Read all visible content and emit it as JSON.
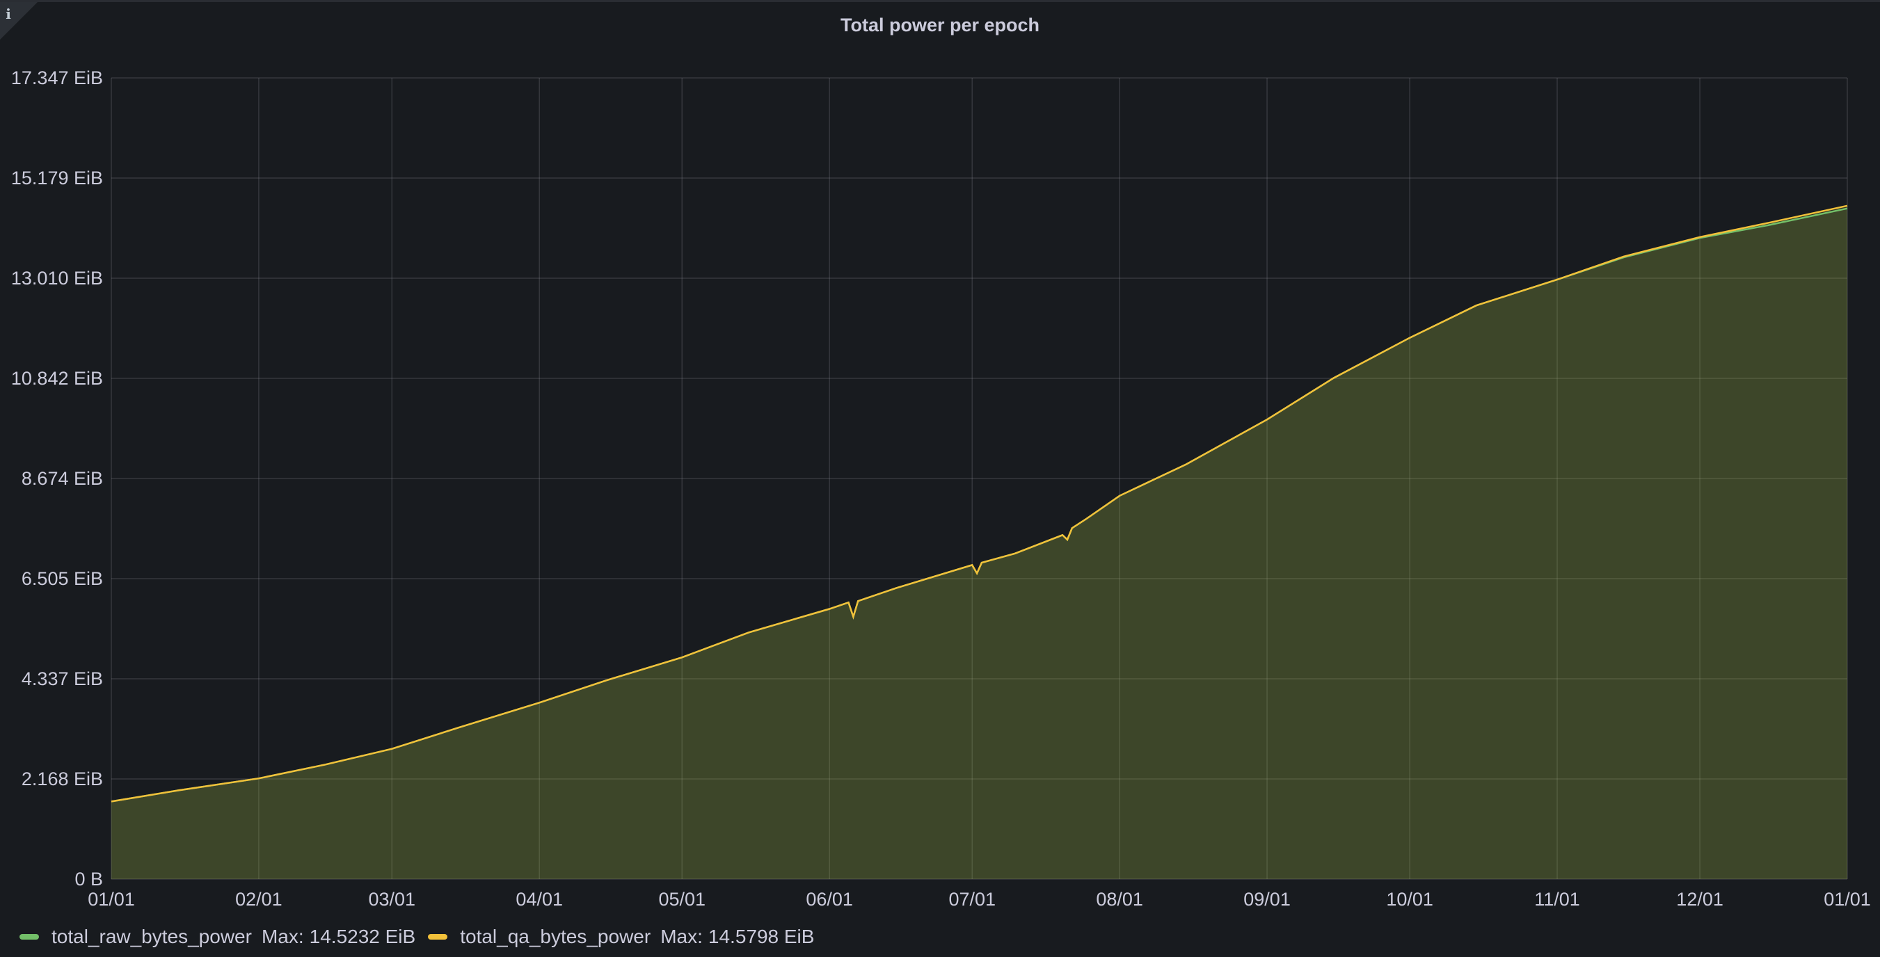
{
  "panel": {
    "title": "Total power per epoch",
    "info_icon": "info-icon"
  },
  "chart_data": {
    "type": "area",
    "title": "Total power per epoch",
    "xlabel": "",
    "ylabel": "",
    "x_ticks": [
      "01/01",
      "02/01",
      "03/01",
      "04/01",
      "05/01",
      "06/01",
      "07/01",
      "08/01",
      "09/01",
      "10/01",
      "11/01",
      "12/01",
      "01/01"
    ],
    "y_ticks": [
      "0 B",
      "2.168 EiB",
      "4.337 EiB",
      "6.505 EiB",
      "8.674 EiB",
      "10.842 EiB",
      "13.010 EiB",
      "15.179 EiB",
      "17.347 EiB"
    ],
    "ylim": [
      0,
      17.347
    ],
    "y_unit": "EiB",
    "grid": true,
    "legend_position": "bottom-left",
    "x": [
      "01/01",
      "01/15",
      "02/01",
      "02/15",
      "03/01",
      "03/15",
      "04/01",
      "04/15",
      "05/01",
      "05/15",
      "06/01",
      "06/05",
      "06/06",
      "06/07",
      "06/15",
      "07/01",
      "07/02",
      "07/03",
      "07/10",
      "07/20",
      "07/21",
      "07/22",
      "07/25",
      "08/01",
      "08/15",
      "09/01",
      "09/15",
      "10/01",
      "10/15",
      "11/01",
      "11/15",
      "12/01",
      "12/15",
      "01/01"
    ],
    "series": [
      {
        "name": "total_raw_bytes_power",
        "color": "#73bf69",
        "values": [
          1.68,
          1.92,
          2.18,
          2.48,
          2.82,
          3.28,
          3.82,
          4.3,
          4.8,
          5.34,
          5.85,
          5.99,
          5.68,
          6.02,
          6.3,
          6.8,
          6.62,
          6.85,
          7.05,
          7.45,
          7.35,
          7.6,
          7.8,
          8.3,
          8.98,
          9.95,
          10.85,
          11.72,
          12.42,
          12.98,
          13.46,
          13.88,
          14.15,
          14.52
        ],
        "max_label": "Max:",
        "max": "14.5232 EiB"
      },
      {
        "name": "total_qa_bytes_power",
        "color": "#fade2a",
        "values": [
          1.68,
          1.92,
          2.18,
          2.48,
          2.82,
          3.28,
          3.82,
          4.3,
          4.8,
          5.34,
          5.85,
          5.99,
          5.68,
          6.02,
          6.3,
          6.8,
          6.62,
          6.85,
          7.05,
          7.45,
          7.35,
          7.6,
          7.8,
          8.3,
          8.98,
          9.95,
          10.85,
          11.72,
          12.42,
          12.98,
          13.48,
          13.9,
          14.2,
          14.58
        ],
        "max_label": "Max:",
        "max": "14.5798 EiB"
      }
    ]
  }
}
